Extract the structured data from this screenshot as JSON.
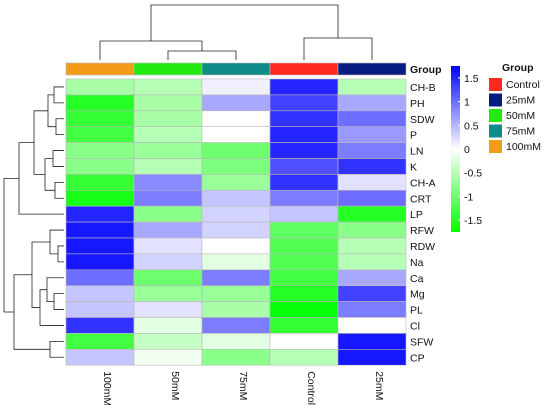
{
  "chart_data": {
    "type": "heatmap",
    "columns": [
      "100mM",
      "50mM",
      "75mM",
      "Control",
      "25mM"
    ],
    "rows": [
      "CH-B",
      "PH",
      "SDW",
      "P",
      "LN",
      "K",
      "CH-A",
      "CRT",
      "LP",
      "RFW",
      "RDW",
      "Na",
      "Ca",
      "Mg",
      "PL",
      "Cl",
      "SFW",
      "CP"
    ],
    "values": [
      [
        -0.6,
        -0.5,
        0.1,
        1.5,
        -0.5
      ],
      [
        -1.5,
        -0.6,
        0.6,
        1.3,
        0.6
      ],
      [
        -1.4,
        -0.6,
        0.0,
        1.4,
        1.0
      ],
      [
        -1.3,
        -0.5,
        0.0,
        1.5,
        0.7
      ],
      [
        -0.8,
        -0.7,
        -1.0,
        1.5,
        0.9
      ],
      [
        -0.8,
        -0.5,
        -0.9,
        1.2,
        1.4
      ],
      [
        -1.4,
        0.8,
        -0.7,
        1.4,
        0.2
      ],
      [
        -1.6,
        0.9,
        0.4,
        0.9,
        1.0
      ],
      [
        1.5,
        -0.8,
        0.3,
        0.4,
        -1.5
      ],
      [
        1.6,
        0.6,
        0.3,
        -1.1,
        -0.8
      ],
      [
        1.6,
        0.2,
        0.0,
        -1.2,
        -0.5
      ],
      [
        1.6,
        0.3,
        -0.2,
        -1.2,
        -0.5
      ],
      [
        1.0,
        -1.0,
        0.9,
        -1.3,
        0.6
      ],
      [
        0.4,
        -0.7,
        -0.7,
        -1.5,
        1.3
      ],
      [
        0.4,
        0.2,
        -0.6,
        -1.7,
        0.9
      ],
      [
        1.4,
        -0.2,
        0.9,
        -1.4,
        0.0
      ],
      [
        -1.3,
        -0.4,
        -0.2,
        0.0,
        1.6
      ],
      [
        0.4,
        -0.1,
        -0.8,
        -0.5,
        1.6
      ]
    ],
    "legend": {
      "ticks": [
        "1.5",
        "1",
        "0.5",
        "0",
        "-0.5",
        "-1",
        "-1.5"
      ],
      "tick_values": [
        1.5,
        1,
        0.5,
        0,
        -0.5,
        -1,
        -1.5
      ],
      "range": [
        -1.75,
        1.75
      ],
      "colors": {
        "low": "#00ff00",
        "mid": "#ffffff",
        "high": "#0000ff"
      }
    },
    "group_annotation": {
      "title": "Group",
      "entries": [
        {
          "label": "Control",
          "color": "#ff2a1f"
        },
        {
          "label": "25mM",
          "color": "#061c80"
        },
        {
          "label": "50mM",
          "color": "#23eb10"
        },
        {
          "label": "75mM",
          "color": "#0e8c88"
        },
        {
          "label": "100mM",
          "color": "#f39c18"
        }
      ],
      "column_groups": [
        "100mM",
        "50mM",
        "75mM",
        "Control",
        "25mM"
      ]
    },
    "dendrograms": {
      "rows": true,
      "columns": true
    }
  }
}
